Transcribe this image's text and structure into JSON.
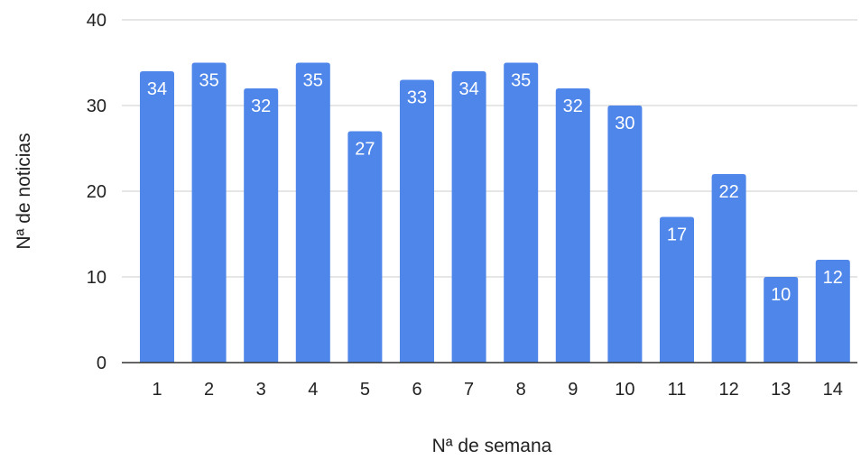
{
  "chart_data": {
    "type": "bar",
    "title": "",
    "xlabel": "Nª de semana",
    "ylabel": "Nª de noticias",
    "categories": [
      "1",
      "2",
      "3",
      "4",
      "5",
      "6",
      "7",
      "8",
      "9",
      "10",
      "11",
      "12",
      "13",
      "14"
    ],
    "values": [
      34,
      35,
      32,
      35,
      27,
      33,
      34,
      35,
      32,
      30,
      17,
      22,
      10,
      12
    ],
    "ylim": [
      0,
      40
    ],
    "yticks": [
      0,
      10,
      20,
      30,
      40
    ],
    "grid": true,
    "legend": "none",
    "data_labels": "inside-top",
    "colors": {
      "bar": "#4F86EA",
      "grid": "#CCCCCC",
      "axis": "#333333",
      "label": "#FFFFFF"
    }
  }
}
